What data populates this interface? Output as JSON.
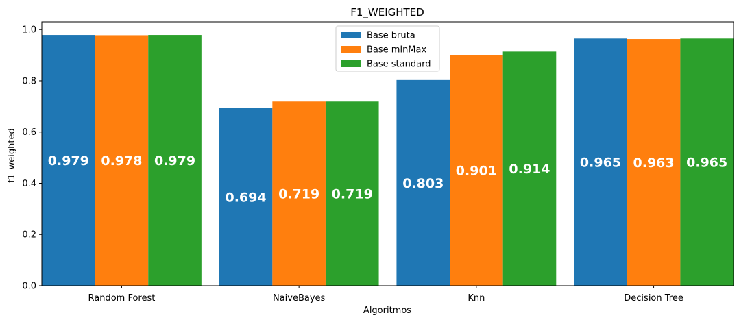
{
  "chart_data": {
    "type": "bar",
    "title": "F1_WEIGHTED",
    "xlabel": "Algoritmos",
    "ylabel": "f1_weighted",
    "categories": [
      "Random Forest",
      "NaiveBayes",
      "Knn",
      "Decision Tree"
    ],
    "series": [
      {
        "name": "Base bruta",
        "color": "#1f77b4",
        "values": [
          0.979,
          0.694,
          0.803,
          0.965
        ]
      },
      {
        "name": "Base minMax",
        "color": "#ff7f0e",
        "values": [
          0.978,
          0.719,
          0.901,
          0.963
        ]
      },
      {
        "name": "Base standard",
        "color": "#2ca02c",
        "values": [
          0.979,
          0.719,
          0.914,
          0.965
        ]
      }
    ],
    "data_labels": [
      [
        "0.979",
        "0.694",
        "0.803",
        "0.965"
      ],
      [
        "0.978",
        "0.719",
        "0.901",
        "0.963"
      ],
      [
        "0.979",
        "0.719",
        "0.914",
        "0.965"
      ]
    ],
    "ylim": [
      0,
      1.03
    ],
    "yticks": [
      "0.0",
      "0.2",
      "0.4",
      "0.6",
      "0.8",
      "1.0"
    ],
    "grid": false,
    "legend_position": "top-center"
  }
}
